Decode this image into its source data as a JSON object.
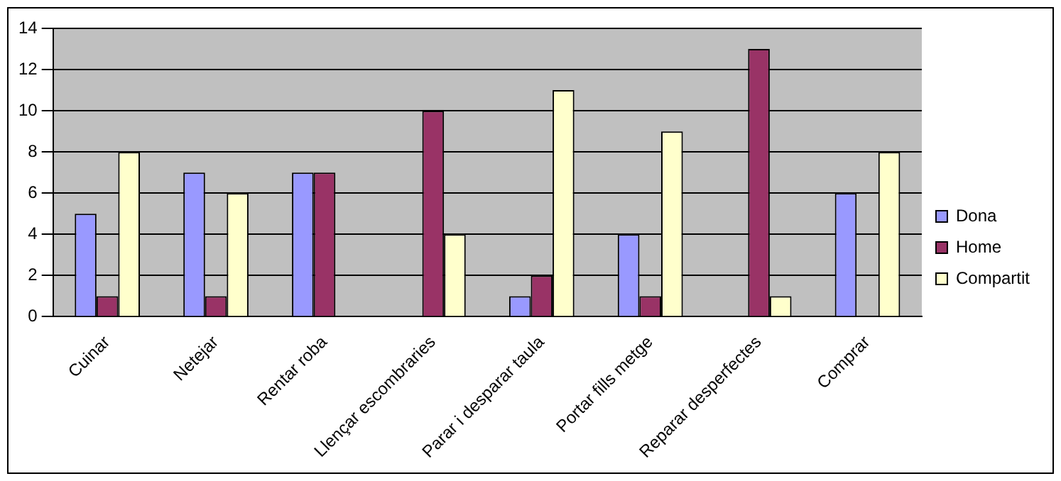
{
  "chart_data": {
    "type": "bar",
    "categories": [
      "Cuinar",
      "Netejar",
      "Rentar roba",
      "Llençar escombraries",
      "Parar i desparar taula",
      "Portar fills metge",
      "Reparar desperfectes",
      "Comprar"
    ],
    "series": [
      {
        "name": "Dona",
        "color": "#9999ff",
        "values": [
          5,
          7,
          7,
          0,
          1,
          4,
          0,
          6
        ]
      },
      {
        "name": "Home",
        "color": "#993366",
        "values": [
          1,
          1,
          7,
          10,
          2,
          1,
          13,
          0
        ]
      },
      {
        "name": "Compartit",
        "color": "#ffffcc",
        "values": [
          8,
          6,
          0,
          4,
          11,
          9,
          1,
          8
        ]
      }
    ],
    "ylim": [
      0,
      14
    ],
    "yticks": [
      0,
      2,
      4,
      6,
      8,
      10,
      12,
      14
    ],
    "grid": "y",
    "legend": "right"
  }
}
